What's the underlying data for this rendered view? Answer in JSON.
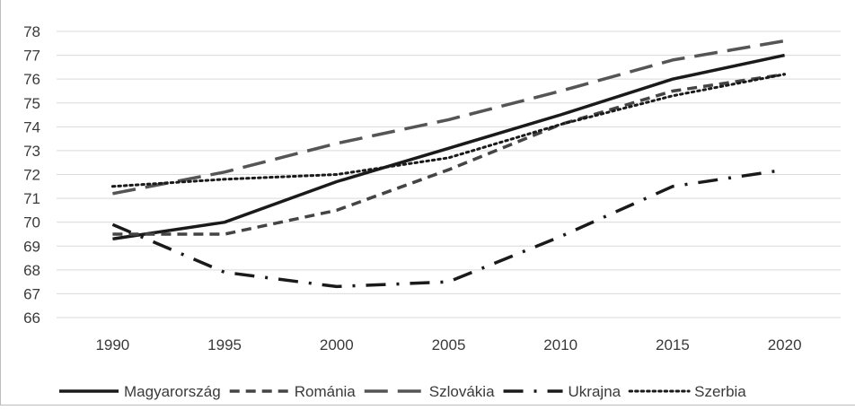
{
  "chart_data": {
    "type": "line",
    "x": [
      1990,
      1995,
      2000,
      2005,
      2010,
      2015,
      2020
    ],
    "xticks": [
      "1990",
      "1995",
      "2000",
      "2005",
      "2010",
      "2015",
      "2020"
    ],
    "yticks": [
      "66",
      "67",
      "68",
      "69",
      "70",
      "71",
      "72",
      "73",
      "74",
      "75",
      "76",
      "77",
      "78"
    ],
    "ylim": [
      66,
      78
    ],
    "grid": "horizontal",
    "legend": "bottom",
    "series": [
      {
        "name": "Magyarország",
        "style": "solid",
        "color": "#1a1a1a",
        "values": [
          69.3,
          70.0,
          71.7,
          73.1,
          74.5,
          76.0,
          77.0
        ]
      },
      {
        "name": "Románia",
        "style": "dash",
        "color": "#444444",
        "values": [
          69.5,
          69.5,
          70.5,
          72.2,
          74.1,
          75.5,
          76.2
        ]
      },
      {
        "name": "Szlovákia",
        "style": "longdash",
        "color": "#555555",
        "values": [
          71.2,
          72.1,
          73.3,
          74.3,
          75.5,
          76.8,
          77.6
        ]
      },
      {
        "name": "Ukrajna",
        "style": "dashdot",
        "color": "#1a1a1a",
        "values": [
          69.9,
          67.9,
          67.3,
          67.5,
          69.4,
          71.5,
          72.2
        ]
      },
      {
        "name": "Szerbia",
        "style": "dot",
        "color": "#1a1a1a",
        "values": [
          71.5,
          71.8,
          72.0,
          72.7,
          74.1,
          75.3,
          76.2
        ]
      }
    ]
  }
}
